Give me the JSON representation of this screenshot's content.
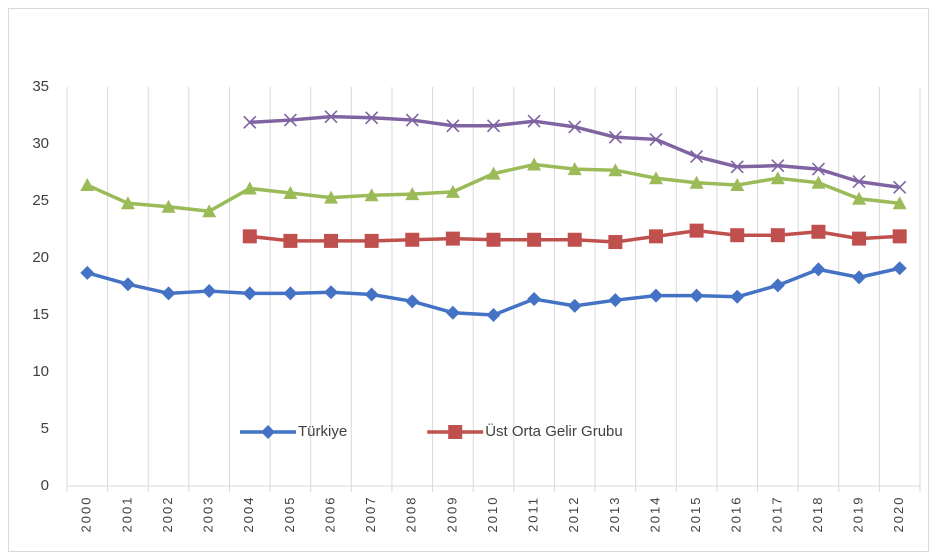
{
  "chart_data": {
    "type": "line",
    "categories": [
      "2000",
      "2001",
      "2002",
      "2003",
      "2004",
      "2005",
      "2006",
      "2007",
      "2008",
      "2009",
      "2010",
      "2011",
      "2012",
      "2013",
      "2014",
      "2015",
      "2016",
      "2017",
      "2018",
      "2019",
      "2020"
    ],
    "series": [
      {
        "name": "Türkiye",
        "color": "#4472c4",
        "marker": "diamond",
        "values": [
          18.7,
          17.7,
          16.9,
          17.1,
          16.9,
          16.9,
          17.0,
          16.8,
          16.2,
          15.2,
          15.0,
          16.4,
          15.8,
          16.3,
          16.7,
          16.7,
          16.6,
          17.6,
          19.0,
          18.3,
          19.1
        ]
      },
      {
        "name": "Üst Orta Gelir Grubu",
        "color": "#c0504d",
        "marker": "square",
        "values": [
          null,
          null,
          null,
          null,
          21.9,
          21.5,
          21.5,
          21.5,
          21.6,
          21.7,
          21.6,
          21.6,
          21.6,
          21.4,
          21.9,
          22.4,
          22.0,
          22.0,
          22.3,
          21.7,
          21.9
        ]
      },
      {
        "color": "#9bbb59",
        "marker": "triangle",
        "values": [
          26.4,
          24.8,
          24.5,
          24.1,
          26.1,
          25.7,
          25.3,
          25.5,
          25.6,
          25.8,
          27.4,
          28.2,
          27.8,
          27.7,
          27.0,
          26.6,
          26.4,
          27.0,
          26.6,
          25.2,
          24.8
        ]
      },
      {
        "color": "#8064a2",
        "marker": "x",
        "values": [
          null,
          null,
          null,
          null,
          31.9,
          32.1,
          32.4,
          32.3,
          32.1,
          31.6,
          31.6,
          32.0,
          31.5,
          30.6,
          30.4,
          28.9,
          28.0,
          28.1,
          27.8,
          26.7,
          26.2
        ]
      }
    ],
    "ylim": [
      0,
      35
    ],
    "yticks": [
      0,
      5,
      10,
      15,
      20,
      25,
      30,
      35
    ],
    "grid": false,
    "category_grid": true,
    "legend_position": "lower left"
  }
}
